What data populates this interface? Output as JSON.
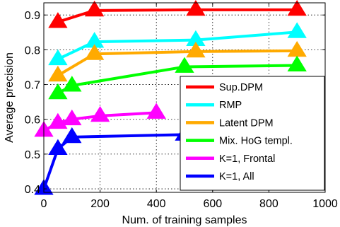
{
  "chart_data": {
    "type": "line",
    "xlabel": "Num. of training samples",
    "ylabel": "Average precision",
    "xlim": [
      0,
      1000
    ],
    "ylim": [
      0.39,
      0.935
    ],
    "xticks": [
      0,
      200,
      400,
      600,
      800,
      1000
    ],
    "yticks": [
      0.4,
      0.5,
      0.6,
      0.7,
      0.8,
      0.9
    ],
    "grid": true,
    "marker": "triangle-up",
    "legend_position": "lower-right",
    "series": [
      {
        "name": "Sup.DPM",
        "color": "#ff0000",
        "x": [
          50,
          180,
          540,
          900
        ],
        "y": [
          0.88,
          0.913,
          0.915,
          0.915
        ]
      },
      {
        "name": "RMP",
        "color": "#00ffff",
        "x": [
          50,
          180,
          540,
          900
        ],
        "y": [
          0.773,
          0.823,
          0.828,
          0.851
        ]
      },
      {
        "name": "Latent DPM",
        "color": "#ffaa00",
        "x": [
          50,
          180,
          540,
          900
        ],
        "y": [
          0.726,
          0.788,
          0.795,
          0.797
        ]
      },
      {
        "name": "Mix. HoG templ.",
        "color": "#00ff00",
        "x": [
          50,
          100,
          500,
          900
        ],
        "y": [
          0.675,
          0.697,
          0.751,
          0.755
        ]
      },
      {
        "name": "K=1, Frontal",
        "color": "#ff00ff",
        "x": [
          0,
          50,
          100,
          200,
          400
        ],
        "y": [
          0.567,
          0.59,
          0.6,
          0.61,
          0.619
        ]
      },
      {
        "name": "K=1, All",
        "color": "#0000ff",
        "x": [
          0,
          50,
          100,
          500
        ],
        "y": [
          0.4,
          0.515,
          0.549,
          0.556
        ]
      }
    ]
  }
}
